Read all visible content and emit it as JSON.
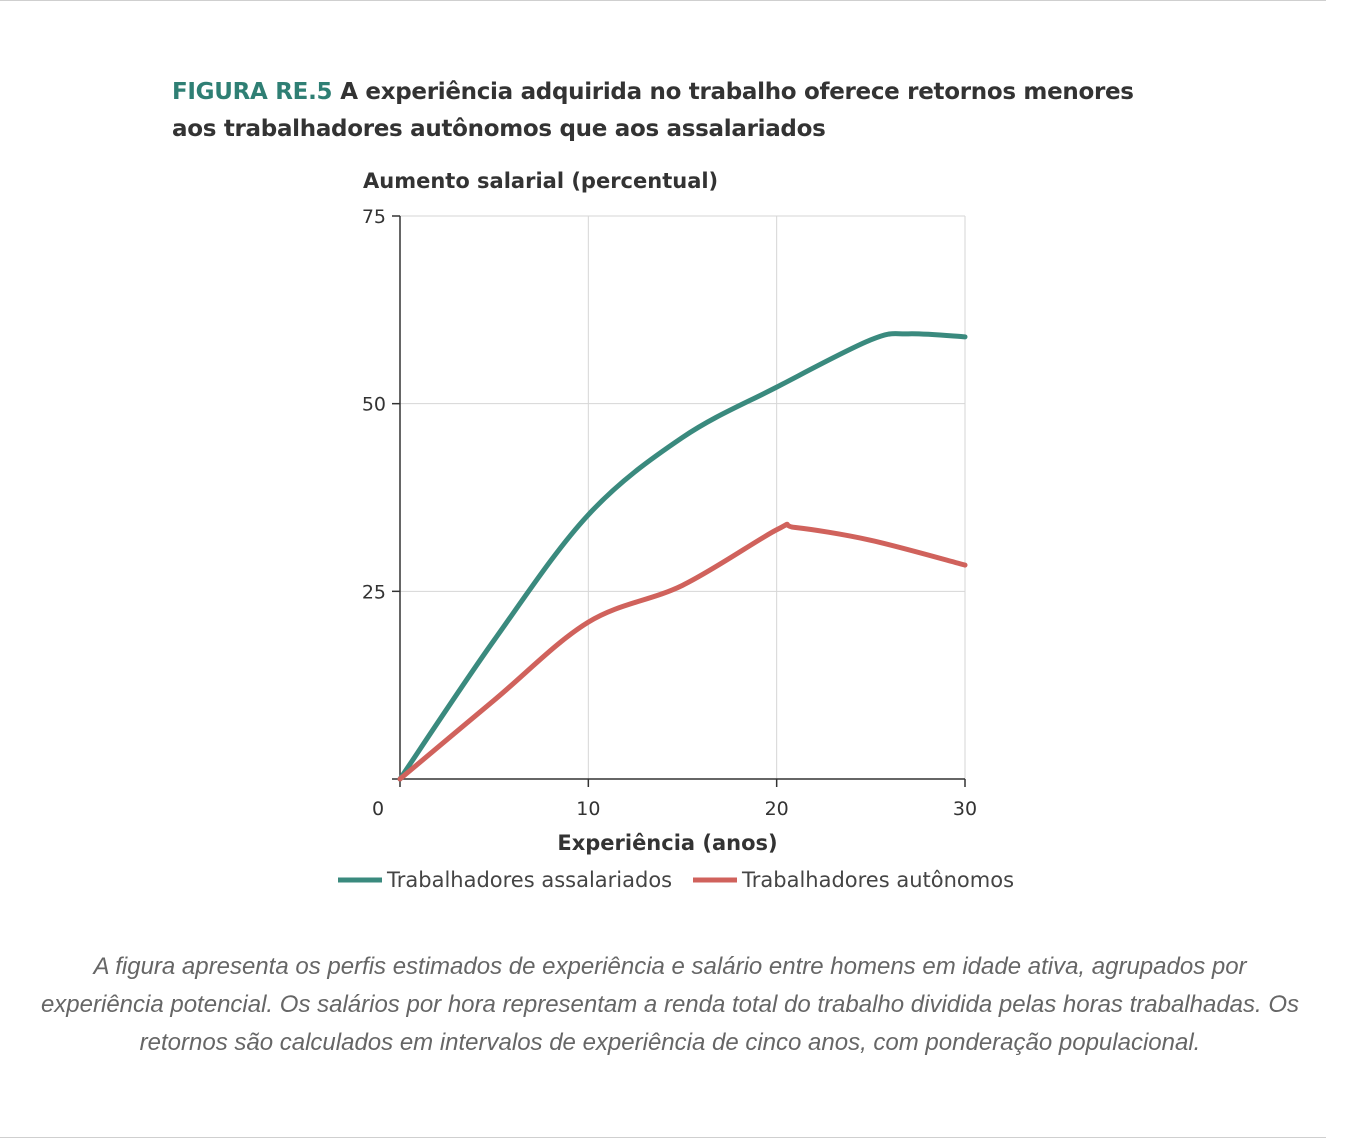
{
  "figure": {
    "label": "FIGURA RE.5",
    "title_line1": "A experiência adquirida no trabalho oferece retornos menores",
    "title_line2": "aos trabalhadores autônomos que aos assalariados"
  },
  "caption": "A figura apresenta os perfis estimados de experiência e salário entre homens em idade ativa, agrupados por experiência potencial. Os salários por hora representam a renda total do trabalho dividida pelas horas trabalhadas. Os retornos são calculados em intervalos de experiência de cinco anos,  com ponderação populacional.",
  "chart_data": {
    "type": "line",
    "ylabel": "Aumento salarial (percentual)",
    "xlabel": "Experiência (anos)",
    "xlim": [
      0,
      30
    ],
    "ylim": [
      0,
      75
    ],
    "xticks": [
      0,
      10,
      20,
      30
    ],
    "yticks": [
      25,
      50,
      75
    ],
    "grid": true,
    "legend_placement": "bottom",
    "series": [
      {
        "name": "Trabalhadores assalariados",
        "color": "#3a8a7e",
        "x": [
          0,
          5,
          10,
          15,
          20,
          25,
          27,
          30
        ],
        "y": [
          0,
          18.5,
          35.2,
          45.5,
          52.2,
          58.5,
          59.3,
          58.9
        ]
      },
      {
        "name": "Trabalhadores autônomos",
        "color": "#d0625c",
        "x": [
          0,
          5,
          10,
          15,
          20,
          21,
          25,
          30
        ],
        "y": [
          0,
          10.5,
          20.9,
          25.8,
          33.2,
          33.5,
          31.8,
          28.5
        ]
      }
    ]
  }
}
